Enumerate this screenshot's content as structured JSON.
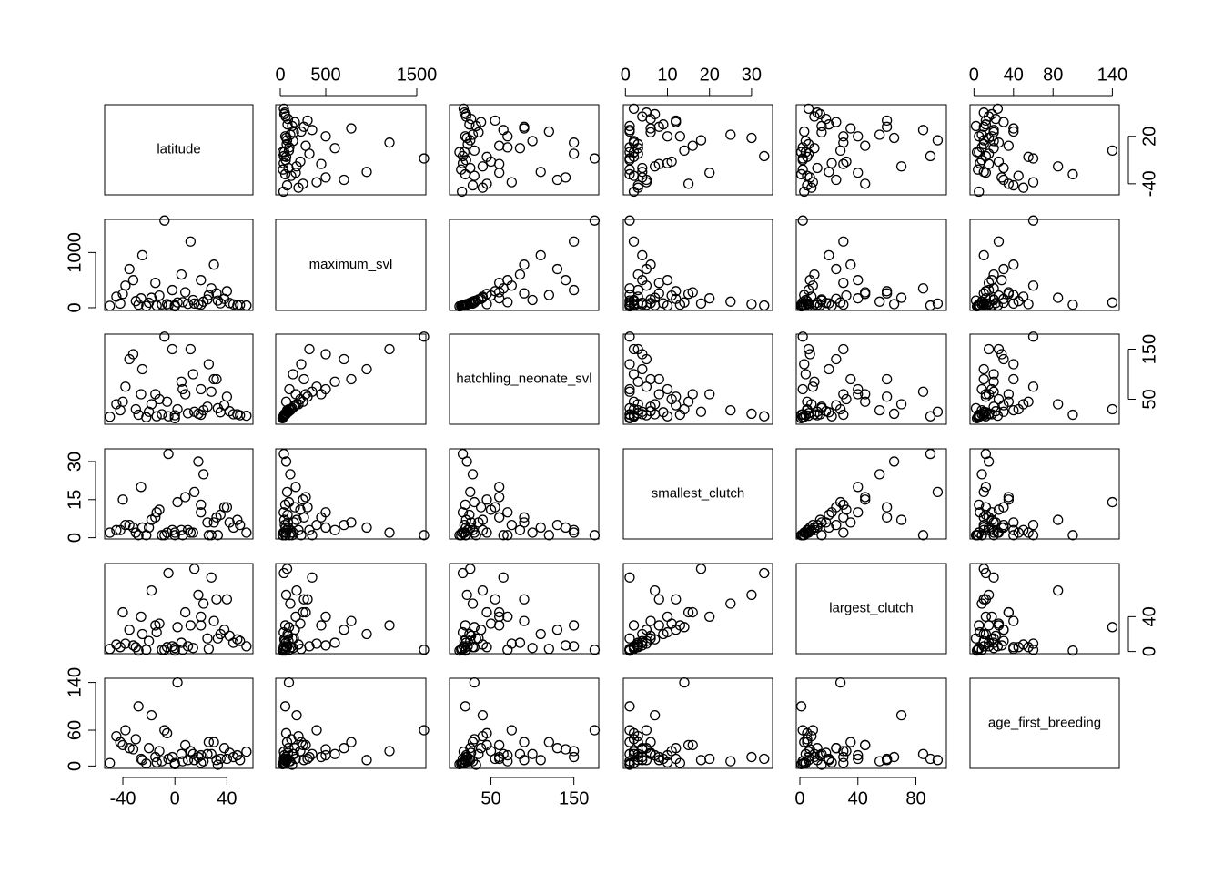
{
  "chart_data": {
    "type": "scatter_matrix",
    "variables": [
      {
        "name": "latitude",
        "lim": [
          -54,
          60
        ],
        "x_ticks": [
          -40,
          0,
          40
        ],
        "y_ticks": [
          -40,
          20
        ],
        "values": [
          -8,
          12,
          -25,
          30,
          -35,
          5,
          20,
          -15,
          40,
          -45,
          -30,
          -20,
          -10,
          0,
          10,
          25,
          35,
          45,
          50,
          55,
          -50,
          -40,
          18,
          22,
          -5,
          15,
          -18,
          28,
          -28,
          2,
          -12,
          33,
          8,
          -38,
          38,
          -22,
          42,
          -2,
          14,
          -32,
          26,
          -6,
          6,
          -42,
          48,
          -14,
          20,
          0,
          -26,
          32
        ]
      },
      {
        "name": "maximum_svl",
        "lim": [
          -50,
          1600
        ],
        "x_ticks": [
          0,
          500,
          1500
        ],
        "y_ticks": [
          0,
          1000
        ],
        "values": [
          1580,
          1200,
          950,
          780,
          700,
          600,
          500,
          450,
          300,
          200,
          120,
          90,
          60,
          45,
          70,
          150,
          80,
          60,
          50,
          40,
          35,
          250,
          65,
          110,
          40,
          75,
          180,
          350,
          55,
          95,
          220,
          130,
          280,
          400,
          160,
          30,
          85,
          320,
          140,
          500,
          230,
          65,
          100,
          75,
          45,
          38,
          55,
          25,
          170,
          260
        ]
      },
      {
        "name": "hatchling_neonate_svl",
        "lim": [
          0,
          180
        ],
        "x_ticks": [
          50,
          150
        ],
        "y_ticks": [
          50,
          150
        ],
        "values": [
          175,
          150,
          110,
          90,
          130,
          85,
          70,
          60,
          55,
          40,
          30,
          25,
          20,
          18,
          22,
          35,
          24,
          20,
          18,
          17,
          15,
          45,
          21,
          28,
          16,
          25,
          40,
          65,
          19,
          30,
          50,
          32,
          60,
          75,
          38,
          14,
          26,
          150,
          100,
          140,
          120,
          45,
          70,
          28,
          20,
          16,
          19,
          12,
          60,
          90
        ]
      },
      {
        "name": "smallest_clutch",
        "lim": [
          -0.5,
          35
        ],
        "x_ticks": [
          0,
          10,
          20,
          30
        ],
        "y_ticks": [
          0,
          15,
          30
        ],
        "values": [
          1,
          2,
          4,
          6,
          5,
          3,
          10,
          8,
          12,
          3,
          2,
          4,
          1,
          2,
          3,
          6,
          9,
          4,
          5,
          2,
          2,
          15,
          30,
          25,
          33,
          18,
          7,
          1,
          1,
          14,
          11,
          1,
          16,
          5,
          12,
          1,
          6,
          3,
          2,
          4,
          1,
          2,
          1,
          3,
          7,
          10,
          13,
          1,
          20,
          8
        ]
      },
      {
        "name": "largest_clutch",
        "lim": [
          -2.5,
          101
        ],
        "x_ticks": [
          0,
          40,
          80
        ],
        "y_ticks": [
          0,
          40
        ],
        "values": [
          2,
          30,
          20,
          35,
          25,
          10,
          40,
          30,
          60,
          8,
          5,
          12,
          2,
          4,
          6,
          15,
          20,
          10,
          12,
          6,
          3,
          45,
          65,
          55,
          90,
          95,
          70,
          85,
          1,
          28,
          32,
          15,
          45,
          9,
          25,
          2,
          18,
          6,
          4,
          7,
          3,
          5,
          2,
          5,
          14,
          22,
          30,
          1,
          40,
          60
        ]
      },
      {
        "name": "age_first_breeding",
        "lim": [
          -4,
          147
        ],
        "x_ticks": [
          0,
          40,
          80,
          140
        ],
        "y_ticks": [
          0,
          60,
          140
        ],
        "values": [
          60,
          25,
          10,
          40,
          30,
          20,
          18,
          15,
          12,
          50,
          45,
          30,
          8,
          5,
          10,
          20,
          12,
          15,
          10,
          24,
          5,
          35,
          15,
          8,
          12,
          10,
          85,
          20,
          100,
          140,
          25,
          2,
          35,
          60,
          30,
          4,
          22,
          15,
          20,
          28,
          40,
          55,
          8,
          40,
          18,
          6,
          5,
          3,
          12,
          10
        ]
      }
    ]
  }
}
